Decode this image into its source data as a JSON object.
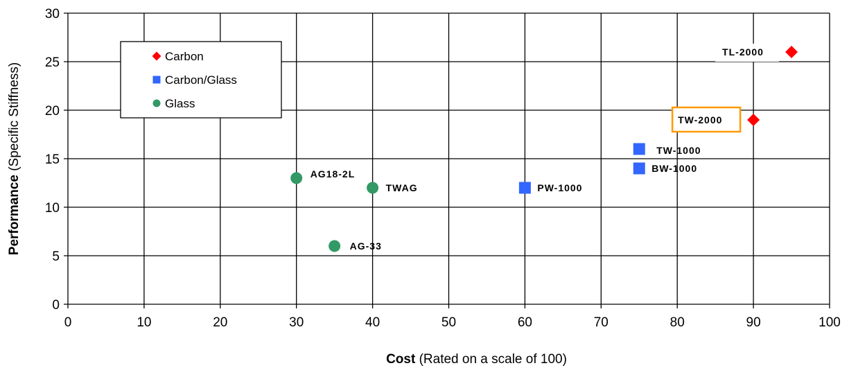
{
  "colors": {
    "carbon": "#ff0000",
    "carbon_glass": "#3366ff",
    "glass": "#339966",
    "highlight_box": "#ff9900",
    "grid": "#000000"
  },
  "chart_data": {
    "type": "scatter",
    "xlabel_bold": "Cost",
    "xlabel_rest": " (Rated on a scale of 100)",
    "ylabel_bold": "Performance",
    "ylabel_rest": " (Specific Stiffness)",
    "xlim": [
      0,
      100
    ],
    "ylim": [
      0,
      30
    ],
    "x_ticks": [
      "0",
      "10",
      "20",
      "30",
      "40",
      "50",
      "60",
      "70",
      "80",
      "90",
      "100"
    ],
    "y_ticks": [
      "0",
      "5",
      "10",
      "15",
      "20",
      "25",
      "30"
    ],
    "grid": true,
    "legend_position": "top-left",
    "series": [
      {
        "name": "Carbon",
        "marker": "diamond",
        "color": "#ff0000",
        "points": [
          {
            "x": 95,
            "y": 26,
            "label": "TL-2000"
          },
          {
            "x": 90,
            "y": 19,
            "label": "TW-2000",
            "highlight": true
          }
        ]
      },
      {
        "name": "Carbon/Glass",
        "marker": "square",
        "color": "#3366ff",
        "points": [
          {
            "x": 75,
            "y": 16,
            "label": "TW-1000"
          },
          {
            "x": 75,
            "y": 14,
            "label": "BW-1000"
          },
          {
            "x": 60,
            "y": 12,
            "label": "PW-1000"
          }
        ]
      },
      {
        "name": "Glass",
        "marker": "circle",
        "color": "#339966",
        "points": [
          {
            "x": 30,
            "y": 13,
            "label": "AG18-2L"
          },
          {
            "x": 40,
            "y": 12,
            "label": "TWAG"
          },
          {
            "x": 35,
            "y": 6,
            "label": "AG-33"
          }
        ]
      }
    ]
  }
}
